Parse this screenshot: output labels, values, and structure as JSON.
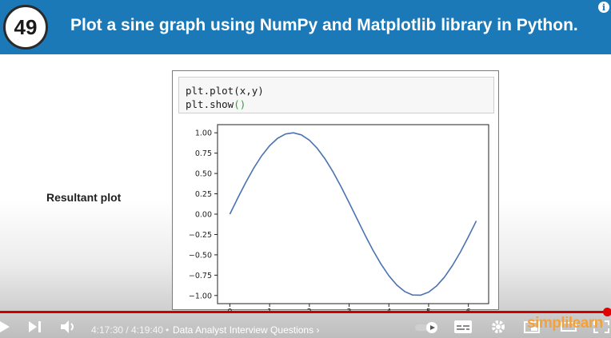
{
  "banner": {
    "number": "49",
    "title": "Plot a sine graph using NumPy and Matplotlib library in Python."
  },
  "side_label": "Resultant plot",
  "code": {
    "line1": "plt.plot(x,y)",
    "line2_prefix": "plt.show",
    "line2_parens": "()"
  },
  "chart_data": {
    "type": "line",
    "series": [
      {
        "x": [
          0,
          0.2,
          0.4,
          0.6,
          0.8,
          1.0,
          1.2,
          1.4,
          1.6,
          1.8,
          2.0,
          2.2,
          2.4,
          2.6,
          2.8,
          3.0,
          3.2,
          3.4,
          3.6,
          3.8,
          4.0,
          4.2,
          4.4,
          4.6,
          4.8,
          5.0,
          5.2,
          5.4,
          5.6,
          5.8,
          6.0,
          6.2
        ],
        "y": [
          0,
          0.199,
          0.389,
          0.565,
          0.717,
          0.841,
          0.932,
          0.985,
          1.0,
          0.974,
          0.909,
          0.808,
          0.675,
          0.516,
          0.335,
          0.141,
          -0.058,
          -0.256,
          -0.443,
          -0.612,
          -0.757,
          -0.872,
          -0.952,
          -0.994,
          -0.996,
          -0.959,
          -0.883,
          -0.773,
          -0.631,
          -0.465,
          -0.279,
          -0.083
        ]
      }
    ],
    "xticks": [
      "0",
      "1",
      "2",
      "3",
      "4",
      "5",
      "6"
    ],
    "yticks": [
      "1.00",
      "0.75",
      "0.50",
      "0.25",
      "0.00",
      "−0.25",
      "−0.50",
      "−0.75",
      "−1.00"
    ],
    "xlim": [
      -0.31,
      6.51
    ],
    "ylim": [
      -1.1,
      1.1
    ],
    "color": "#4c72b0",
    "grid": false
  },
  "player": {
    "time": "4:17:30 / 4:19:40",
    "separator": "•",
    "chapter": "Data Analyst Interview Questions",
    "chapter_chevron": "›",
    "progress_fraction": 0.988
  },
  "logo_text": "simplilearn",
  "icons": [
    "play-icon",
    "next-icon",
    "volume-icon",
    "autoplay-toggle-icon",
    "subtitles-icon",
    "settings-icon",
    "miniplayer-icon",
    "theater-icon",
    "fullscreen-icon",
    "info-icon"
  ],
  "colors": {
    "banner": "#1b79b8",
    "progress": "#cc0000",
    "line": "#4c72b0"
  }
}
